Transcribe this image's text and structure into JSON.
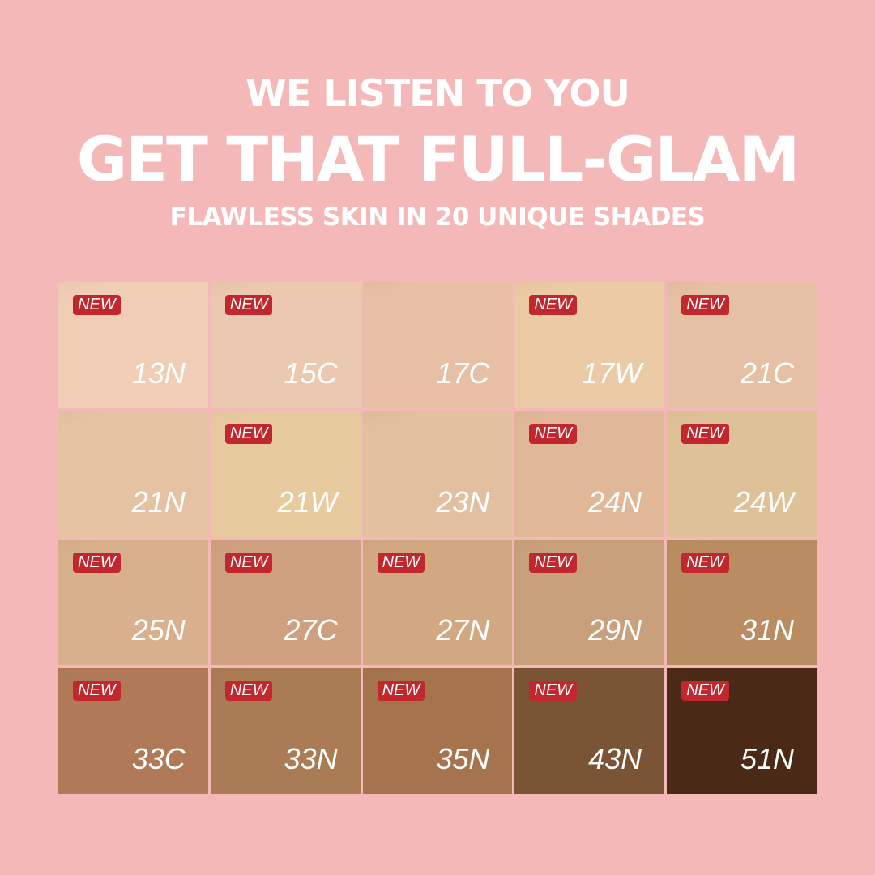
{
  "header": {
    "line1": "WE LISTEN TO YOU",
    "line2": "GET THAT FULL-GLAM",
    "line3": "FLAWLESS SKIN IN 20 UNIQUE SHADES"
  },
  "badge_label": "NEW",
  "colors": {
    "background": "#f4b8b8",
    "badge": "#c1272d"
  },
  "shades": [
    {
      "code": "13N",
      "new": true,
      "color": "#f0cdb5"
    },
    {
      "code": "15C",
      "new": true,
      "color": "#ebc8b0"
    },
    {
      "code": "17C",
      "new": false,
      "color": "#e6bfa4"
    },
    {
      "code": "17W",
      "new": true,
      "color": "#ebcaa6"
    },
    {
      "code": "21C",
      "new": true,
      "color": "#e6c0a4"
    },
    {
      "code": "21N",
      "new": false,
      "color": "#e4c2a2"
    },
    {
      "code": "21W",
      "new": true,
      "color": "#e8ca9f"
    },
    {
      "code": "23N",
      "new": false,
      "color": "#e2bf9f"
    },
    {
      "code": "24N",
      "new": true,
      "color": "#e0b898"
    },
    {
      "code": "24W",
      "new": true,
      "color": "#dfc197"
    },
    {
      "code": "25N",
      "new": true,
      "color": "#d8b08e"
    },
    {
      "code": "27C",
      "new": true,
      "color": "#cfa080"
    },
    {
      "code": "27N",
      "new": true,
      "color": "#d2a882"
    },
    {
      "code": "29N",
      "new": true,
      "color": "#c9a07c"
    },
    {
      "code": "31N",
      "new": true,
      "color": "#b98c62"
    },
    {
      "code": "33C",
      "new": true,
      "color": "#b07a58"
    },
    {
      "code": "33N",
      "new": true,
      "color": "#a97c55"
    },
    {
      "code": "35N",
      "new": true,
      "color": "#a5734d"
    },
    {
      "code": "43N",
      "new": true,
      "color": "#7a5535"
    },
    {
      "code": "51N",
      "new": true,
      "color": "#4a2a16"
    }
  ]
}
